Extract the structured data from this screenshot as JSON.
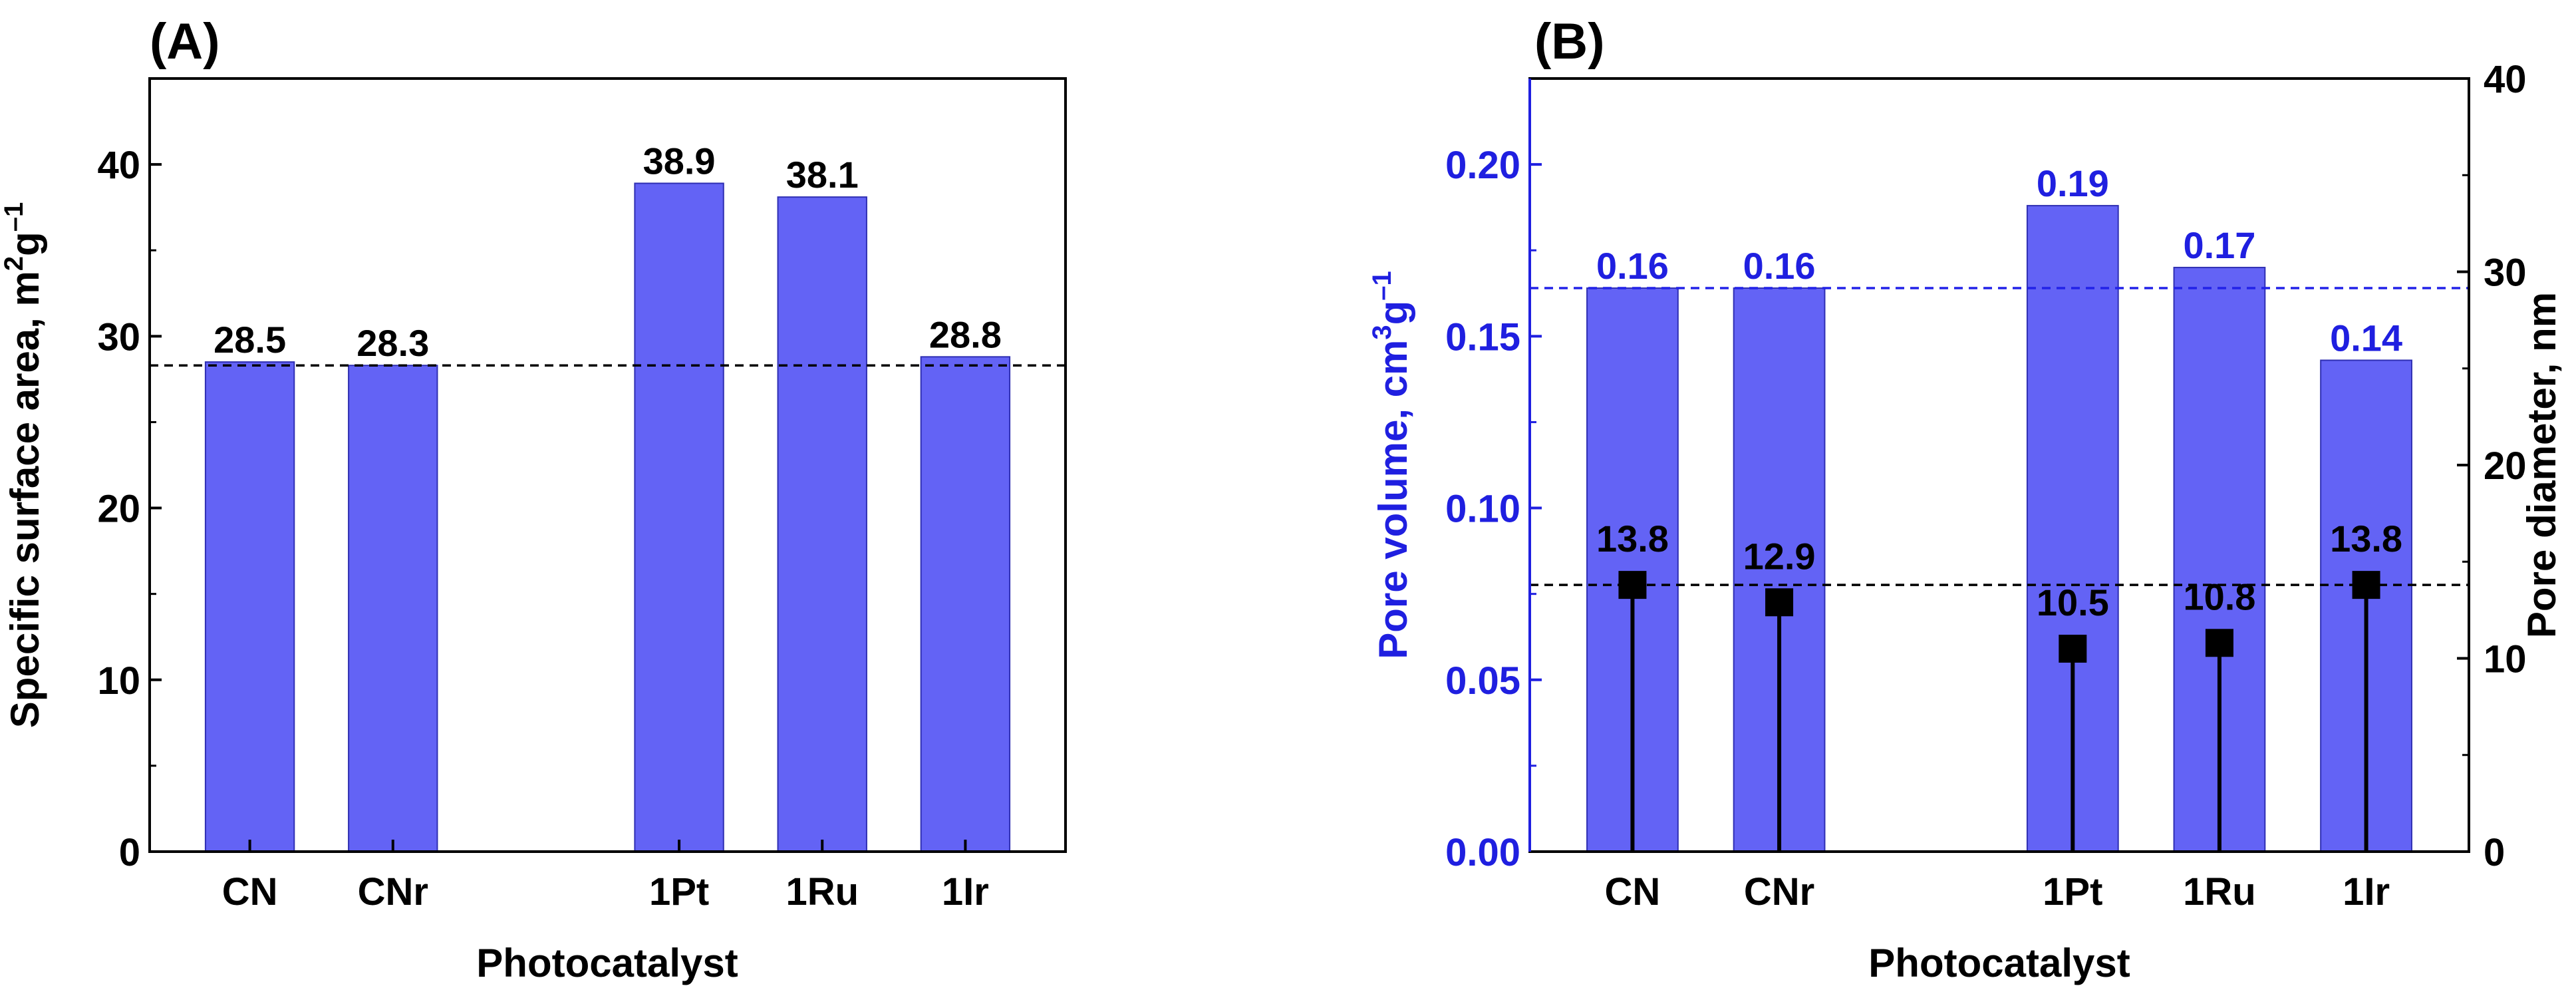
{
  "chart_data": [
    {
      "type": "bar",
      "panel_label": "(A)",
      "title": "",
      "xlabel": "Photocatalyst",
      "ylabel": "Specific surface area, m",
      "ylabel_sup": "2",
      "ylabel_unit": "g",
      "ylabel_sup2": "–1",
      "categories": [
        "CN",
        "CNr",
        "1Pt",
        "1Ru",
        "1Ir"
      ],
      "category_positions": [
        1,
        2,
        4,
        5,
        6
      ],
      "xlim": [
        0.3,
        6.7
      ],
      "values": [
        28.5,
        28.3,
        38.9,
        38.1,
        28.8
      ],
      "value_labels": [
        "28.5",
        "28.3",
        "38.9",
        "38.1",
        "28.8"
      ],
      "ylim": [
        0,
        45
      ],
      "yticks": [
        0,
        10,
        20,
        30,
        40
      ],
      "reference_line": 28.3,
      "grid": false
    },
    {
      "type": "bar",
      "panel_label": "(B)",
      "title": "",
      "xlabel": "Photocatalyst",
      "ylabel": "Pore volume, cm",
      "ylabel_sup": "3",
      "ylabel_unit": "g",
      "ylabel_sup2": "–1",
      "categories": [
        "CN",
        "CNr",
        "1Pt",
        "1Ru",
        "1Ir"
      ],
      "category_positions": [
        1,
        2,
        4,
        5,
        6
      ],
      "xlim": [
        0.3,
        6.7
      ],
      "ylim": [
        0,
        0.225
      ],
      "yticks": [
        "0.00",
        "0.05",
        "0.10",
        "0.15",
        "0.20"
      ],
      "series": [
        {
          "name": "Pore volume",
          "axis": "left",
          "values": [
            0.164,
            0.164,
            0.188,
            0.17,
            0.143
          ],
          "value_labels": [
            "0.16",
            "0.16",
            "0.19",
            "0.17",
            "0.14"
          ],
          "reference_line": 0.164
        },
        {
          "name": "Pore diameter",
          "axis": "right",
          "marker": "square",
          "values": [
            13.8,
            12.9,
            10.5,
            10.8,
            13.8
          ],
          "value_labels": [
            "13.8",
            "12.9",
            "10.5",
            "10.8",
            "13.8"
          ],
          "reference_line": 13.8
        }
      ],
      "y2label": "Pore diameter, nm",
      "y2lim": [
        0,
        40
      ],
      "y2ticks": [
        0,
        10,
        20,
        30,
        40
      ],
      "grid": false
    }
  ],
  "colors": {
    "bar_fill": "#6363f5",
    "bar_edge": "#2f2fb3",
    "left_axis_b": "#1f1fe0",
    "ref_line_blue": "#2222e8",
    "black": "#000000"
  }
}
